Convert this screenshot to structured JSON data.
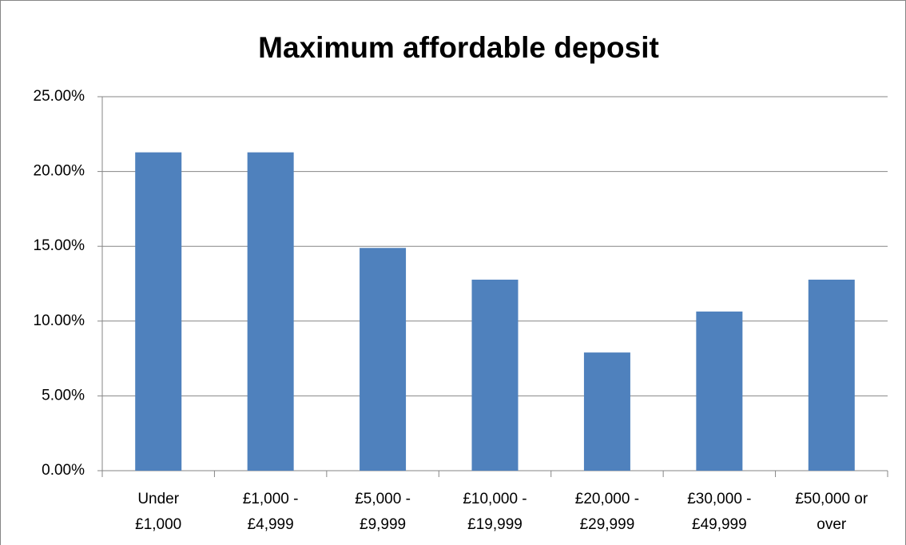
{
  "chart_data": {
    "type": "bar",
    "title": "Maximum affordable deposit",
    "categories": [
      "Under £1,000",
      "£1,000 - £4,999",
      "£5,000 - £9,999",
      "£10,000 - £19,999",
      "£20,000 - £29,999",
      "£30,000 - £49,999",
      "£50,000 or over"
    ],
    "values": [
      21.28,
      21.28,
      14.89,
      12.77,
      7.9,
      10.64,
      12.77
    ],
    "color": "#4f81bd",
    "ylim": [
      0,
      25
    ],
    "yticks": [
      {
        "value": 0,
        "label": "0.00%"
      },
      {
        "value": 5,
        "label": "5.00%"
      },
      {
        "value": 10,
        "label": "10.00%"
      },
      {
        "value": 15,
        "label": "15.00%"
      },
      {
        "value": 20,
        "label": "20.00%"
      },
      {
        "value": 25,
        "label": "25.00%"
      }
    ],
    "grid": true
  }
}
